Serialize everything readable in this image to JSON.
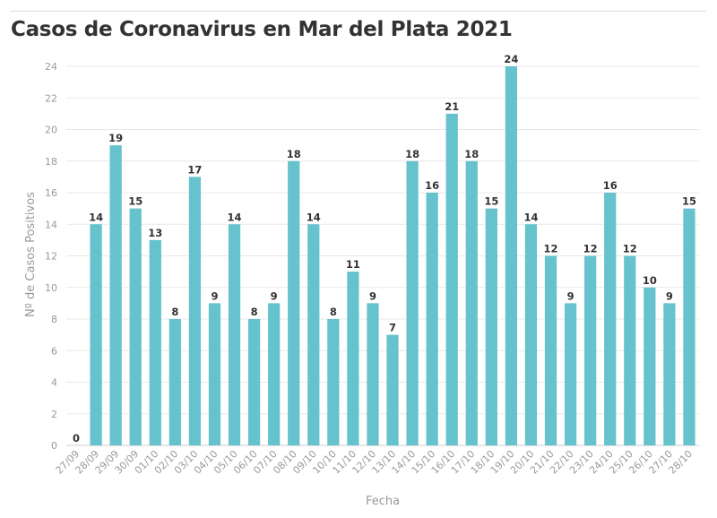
{
  "chart_data": {
    "type": "bar",
    "title": "Casos de Coronavirus en Mar del Plata 2021",
    "xlabel": "Fecha",
    "ylabel": "Nº de Casos Positivos",
    "ylim": [
      0,
      24
    ],
    "yticks": [
      0,
      2,
      4,
      6,
      8,
      10,
      12,
      14,
      16,
      18,
      20,
      22,
      24
    ],
    "grid": true,
    "bar_color": "#66c2cc",
    "categories": [
      "27/09",
      "28/09",
      "29/09",
      "30/09",
      "01/10",
      "02/10",
      "03/10",
      "04/10",
      "05/10",
      "06/10",
      "07/10",
      "08/10",
      "09/10",
      "10/10",
      "11/10",
      "12/10",
      "13/10",
      "14/10",
      "15/10",
      "16/10",
      "17/10",
      "18/10",
      "19/10",
      "20/10",
      "21/10",
      "22/10",
      "23/10",
      "24/10",
      "25/10",
      "26/10",
      "27/10",
      "28/10"
    ],
    "values": [
      0,
      14,
      19,
      15,
      13,
      8,
      17,
      9,
      14,
      8,
      9,
      18,
      14,
      8,
      11,
      9,
      7,
      18,
      16,
      21,
      18,
      15,
      24,
      14,
      12,
      9,
      12,
      16,
      12,
      10,
      9,
      15
    ]
  }
}
